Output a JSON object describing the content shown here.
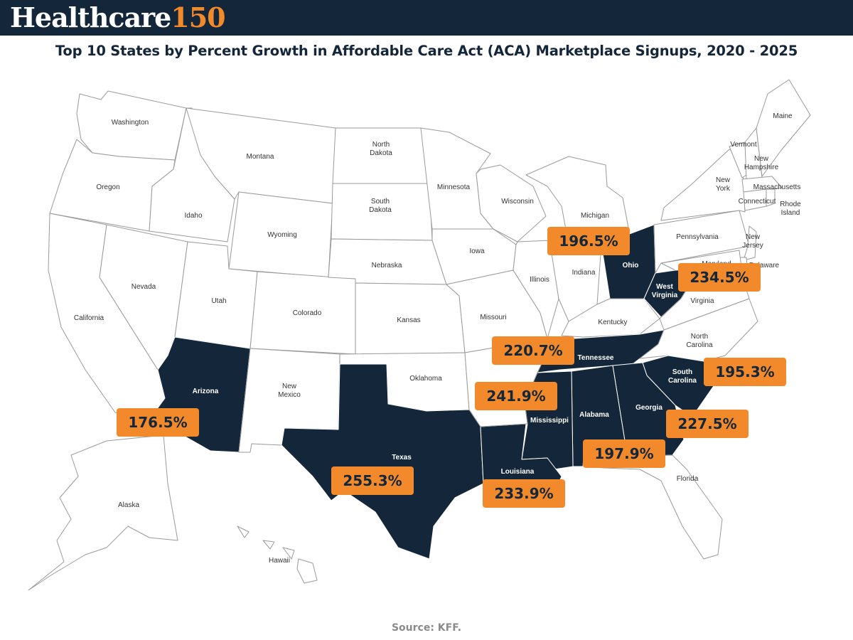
{
  "header": {
    "logo_word": "Healthcare",
    "logo_number": "150",
    "brand_color": "#14273a",
    "accent_color": "#f2892a"
  },
  "title": "Top 10 States by Percent Growth in Affordable Care Act (ACA) Marketplace Signups, 2020 - 2025",
  "source": "Source: KFF.",
  "map": {
    "highlight_color": "#14273a",
    "state_labels": [
      "Washington",
      "Oregon",
      "California",
      "Nevada",
      "Idaho",
      "Montana",
      "Wyoming",
      "Utah",
      "Colorado",
      "North",
      "Dakota",
      "South",
      "Dakota",
      "Nebraska",
      "Kansas",
      "Oklahoma",
      "New",
      "Mexico",
      "Minnesota",
      "Iowa",
      "Missouri",
      "Wisconsin",
      "Illinois",
      "Indiana",
      "Michigan",
      "Kentucky",
      "Pennsylvania",
      "Virginia",
      "North",
      "Carolina",
      "New",
      "York",
      "Vermont",
      "New",
      "Hampshire",
      "Maine",
      "Massachusetts",
      "Connecticut",
      "Rhode",
      "Island",
      "New",
      "Jersey",
      "Delaware",
      "Maryland",
      "Florida",
      "Alaska",
      "Hawaii"
    ],
    "highlighted_labels": [
      "Arizona",
      "Texas",
      "Louisiana",
      "Mississippi",
      "Alabama",
      "Georgia",
      "Tennessee",
      "South",
      "Carolina",
      "Ohio",
      "West",
      "Virginia"
    ],
    "top_states": [
      {
        "state": "Texas",
        "growth": "255.3%",
        "value": 255.3
      },
      {
        "state": "Mississippi",
        "growth": "241.9%",
        "value": 241.9
      },
      {
        "state": "West Virginia",
        "growth": "234.5%",
        "value": 234.5
      },
      {
        "state": "Louisiana",
        "growth": "233.9%",
        "value": 233.9
      },
      {
        "state": "Georgia",
        "growth": "227.5%",
        "value": 227.5
      },
      {
        "state": "Tennessee",
        "growth": "220.7%",
        "value": 220.7
      },
      {
        "state": "Alabama",
        "growth": "197.9%",
        "value": 197.9
      },
      {
        "state": "Ohio",
        "growth": "196.5%",
        "value": 196.5
      },
      {
        "state": "South Carolina",
        "growth": "195.3%",
        "value": 195.3
      },
      {
        "state": "Arizona",
        "growth": "176.5%",
        "value": 176.5
      }
    ]
  }
}
